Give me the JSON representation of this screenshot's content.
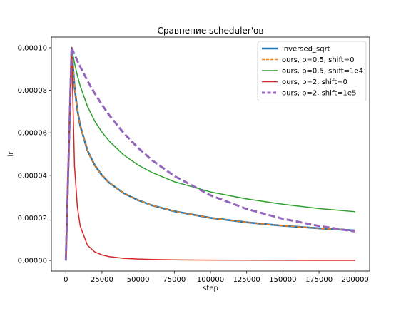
{
  "chart_data": {
    "type": "line",
    "title": "Сравнение scheduler'ов",
    "xlabel": "step",
    "ylabel": "lr",
    "xlim": [
      -10000,
      210000
    ],
    "ylim": [
      -5e-06,
      0.000105
    ],
    "grid": false,
    "legend_position": "top-right",
    "x_ticks": [
      0,
      25000,
      50000,
      75000,
      100000,
      125000,
      150000,
      175000,
      200000
    ],
    "x_tick_labels": [
      "0",
      "25000",
      "50000",
      "75000",
      "100000",
      "125000",
      "150000",
      "175000",
      "200000"
    ],
    "y_ticks": [
      0,
      2e-05,
      4e-05,
      6e-05,
      8e-05,
      0.0001
    ],
    "y_tick_labels": [
      "0.00000",
      "0.00002",
      "0.00004",
      "0.00006",
      "0.00008",
      "0.00010"
    ],
    "x": [
      0,
      4000,
      6000,
      8000,
      10000,
      15000,
      20000,
      25000,
      30000,
      40000,
      50000,
      60000,
      75000,
      100000,
      125000,
      150000,
      175000,
      200000
    ],
    "series": [
      {
        "name": "inversed_sqrt",
        "color": "#1f77b4",
        "style": "solid",
        "y": [
          0,
          0.0001,
          8.16e-05,
          7.07e-05,
          6.32e-05,
          5.16e-05,
          4.47e-05,
          4e-05,
          3.65e-05,
          3.16e-05,
          2.83e-05,
          2.58e-05,
          2.31e-05,
          2e-05,
          1.79e-05,
          1.63e-05,
          1.51e-05,
          1.41e-05
        ]
      },
      {
        "name": "ours, p=0.5, shift=0",
        "color": "#ff7f0e",
        "style": "dashed",
        "y": [
          0,
          0.0001,
          8.16e-05,
          7.07e-05,
          6.32e-05,
          5.16e-05,
          4.47e-05,
          4e-05,
          3.65e-05,
          3.16e-05,
          2.83e-05,
          2.58e-05,
          2.31e-05,
          2e-05,
          1.79e-05,
          1.63e-05,
          1.51e-05,
          1.41e-05
        ]
      },
      {
        "name": "ours, p=0.5, shift=1e4",
        "color": "#2ca02c",
        "style": "solid",
        "y": [
          0,
          0.0001,
          9.28e-05,
          8.68e-05,
          8.19e-05,
          7.24e-05,
          6.55e-05,
          6.03e-05,
          5.61e-05,
          4.96e-05,
          4.48e-05,
          4.12e-05,
          3.7e-05,
          3.22e-05,
          2.89e-05,
          2.64e-05,
          2.44e-05,
          2.29e-05
        ]
      },
      {
        "name": "ours, p=2, shift=0",
        "color": "#d62728",
        "style": "solid",
        "y": [
          0,
          0.0001,
          4.44e-05,
          2.5e-05,
          1.6e-05,
          7.1e-06,
          4e-06,
          2.6e-06,
          1.8e-06,
          1e-06,
          6.4e-07,
          4.4e-07,
          2.8e-07,
          1.6e-07,
          1e-07,
          7e-08,
          5e-08,
          4e-08
        ]
      },
      {
        "name": "ours, p=2, shift=1e5",
        "color": "#9467bd",
        "style": "dashed",
        "y": [
          0,
          0.0001,
          9.68e-05,
          9.38e-05,
          9.1e-05,
          8.44e-05,
          7.85e-05,
          7.32e-05,
          6.83e-05,
          5.99e-05,
          5.29e-05,
          4.69e-05,
          3.97e-05,
          3.06e-05,
          2.42e-05,
          1.96e-05,
          1.62e-05,
          1.36e-05
        ]
      }
    ]
  }
}
